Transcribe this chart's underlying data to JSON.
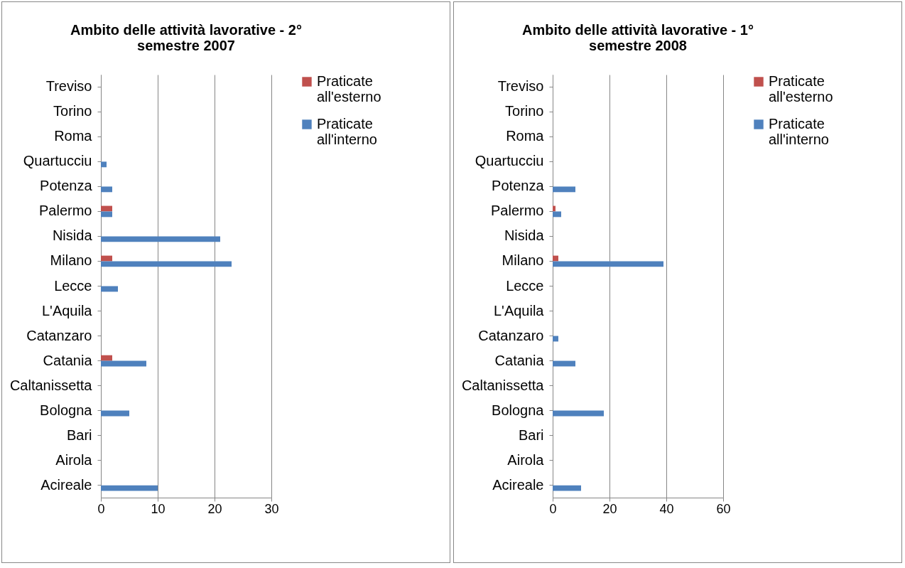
{
  "chart_data": [
    {
      "type": "bar",
      "orientation": "horizontal",
      "title": "Ambito delle attività lavorative  - 2° semestre 2007",
      "categories": [
        "Treviso",
        "Torino",
        "Roma",
        "Quartucciu",
        "Potenza",
        "Palermo",
        "Nisida",
        "Milano",
        "Lecce",
        "L'Aquila",
        "Catanzaro",
        "Catania",
        "Caltanissetta",
        "Bologna",
        "Bari",
        "Airola",
        "Acireale"
      ],
      "series": [
        {
          "name": "Praticate all'esterno",
          "color": "#c0504d",
          "values": [
            null,
            null,
            null,
            null,
            null,
            2,
            null,
            2,
            null,
            null,
            null,
            2,
            null,
            null,
            null,
            null,
            null
          ]
        },
        {
          "name": "Praticate all'interno",
          "color": "#4f81bd",
          "values": [
            null,
            null,
            null,
            1,
            2,
            2,
            21,
            23,
            3,
            null,
            null,
            8,
            null,
            5,
            null,
            null,
            10
          ]
        }
      ],
      "xlim": [
        0,
        30
      ],
      "xticks": [
        0,
        10,
        20,
        30
      ],
      "grid": "x",
      "legend": "right"
    },
    {
      "type": "bar",
      "orientation": "horizontal",
      "title": "Ambito delle attività lavorative - 1° semestre 2008",
      "categories": [
        "Treviso",
        "Torino",
        "Roma",
        "Quartucciu",
        "Potenza",
        "Palermo",
        "Nisida",
        "Milano",
        "Lecce",
        "L'Aquila",
        "Catanzaro",
        "Catania",
        "Caltanissetta",
        "Bologna",
        "Bari",
        "Airola",
        "Acireale"
      ],
      "series": [
        {
          "name": "Praticate all'esterno",
          "color": "#c0504d",
          "values": [
            null,
            null,
            null,
            null,
            null,
            1,
            null,
            2,
            null,
            null,
            null,
            null,
            null,
            null,
            null,
            null,
            null
          ]
        },
        {
          "name": "Praticate all'interno",
          "color": "#4f81bd",
          "values": [
            null,
            null,
            null,
            null,
            8,
            3,
            null,
            39,
            null,
            null,
            2,
            8,
            null,
            18,
            null,
            null,
            10
          ]
        }
      ],
      "xlim": [
        0,
        60
      ],
      "xticks": [
        0,
        20,
        40,
        60
      ],
      "grid": "x",
      "legend": "right"
    }
  ]
}
